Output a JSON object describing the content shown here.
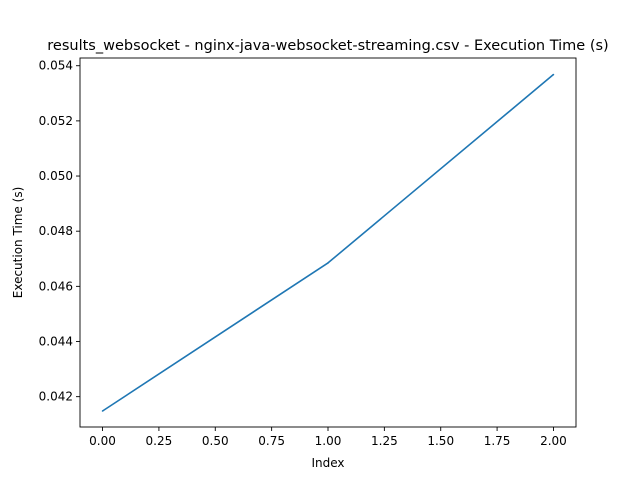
{
  "chart_data": {
    "type": "line",
    "title": "results_websocket - nginx-java-websocket-streaming.csv - Execution Time (s)",
    "xlabel": "Index",
    "ylabel": "Execution Time (s)",
    "xlim": [
      -0.1,
      2.1
    ],
    "ylim": [
      0.0409,
      0.05428
    ],
    "xticks": [
      0.0,
      0.25,
      0.5,
      0.75,
      1.0,
      1.25,
      1.5,
      1.75,
      2.0
    ],
    "xtick_labels": [
      "0.00",
      "0.25",
      "0.50",
      "0.75",
      "1.00",
      "1.25",
      "1.50",
      "1.75",
      "2.00"
    ],
    "yticks": [
      0.042,
      0.044,
      0.046,
      0.048,
      0.05,
      0.052,
      0.054
    ],
    "ytick_labels": [
      "0.042",
      "0.044",
      "0.046",
      "0.048",
      "0.050",
      "0.052",
      "0.054"
    ],
    "grid": false,
    "series": [
      {
        "color": "#1f77b4",
        "x": [
          0,
          1,
          2
        ],
        "y": [
          0.04148,
          0.04685,
          0.05368
        ]
      }
    ]
  }
}
